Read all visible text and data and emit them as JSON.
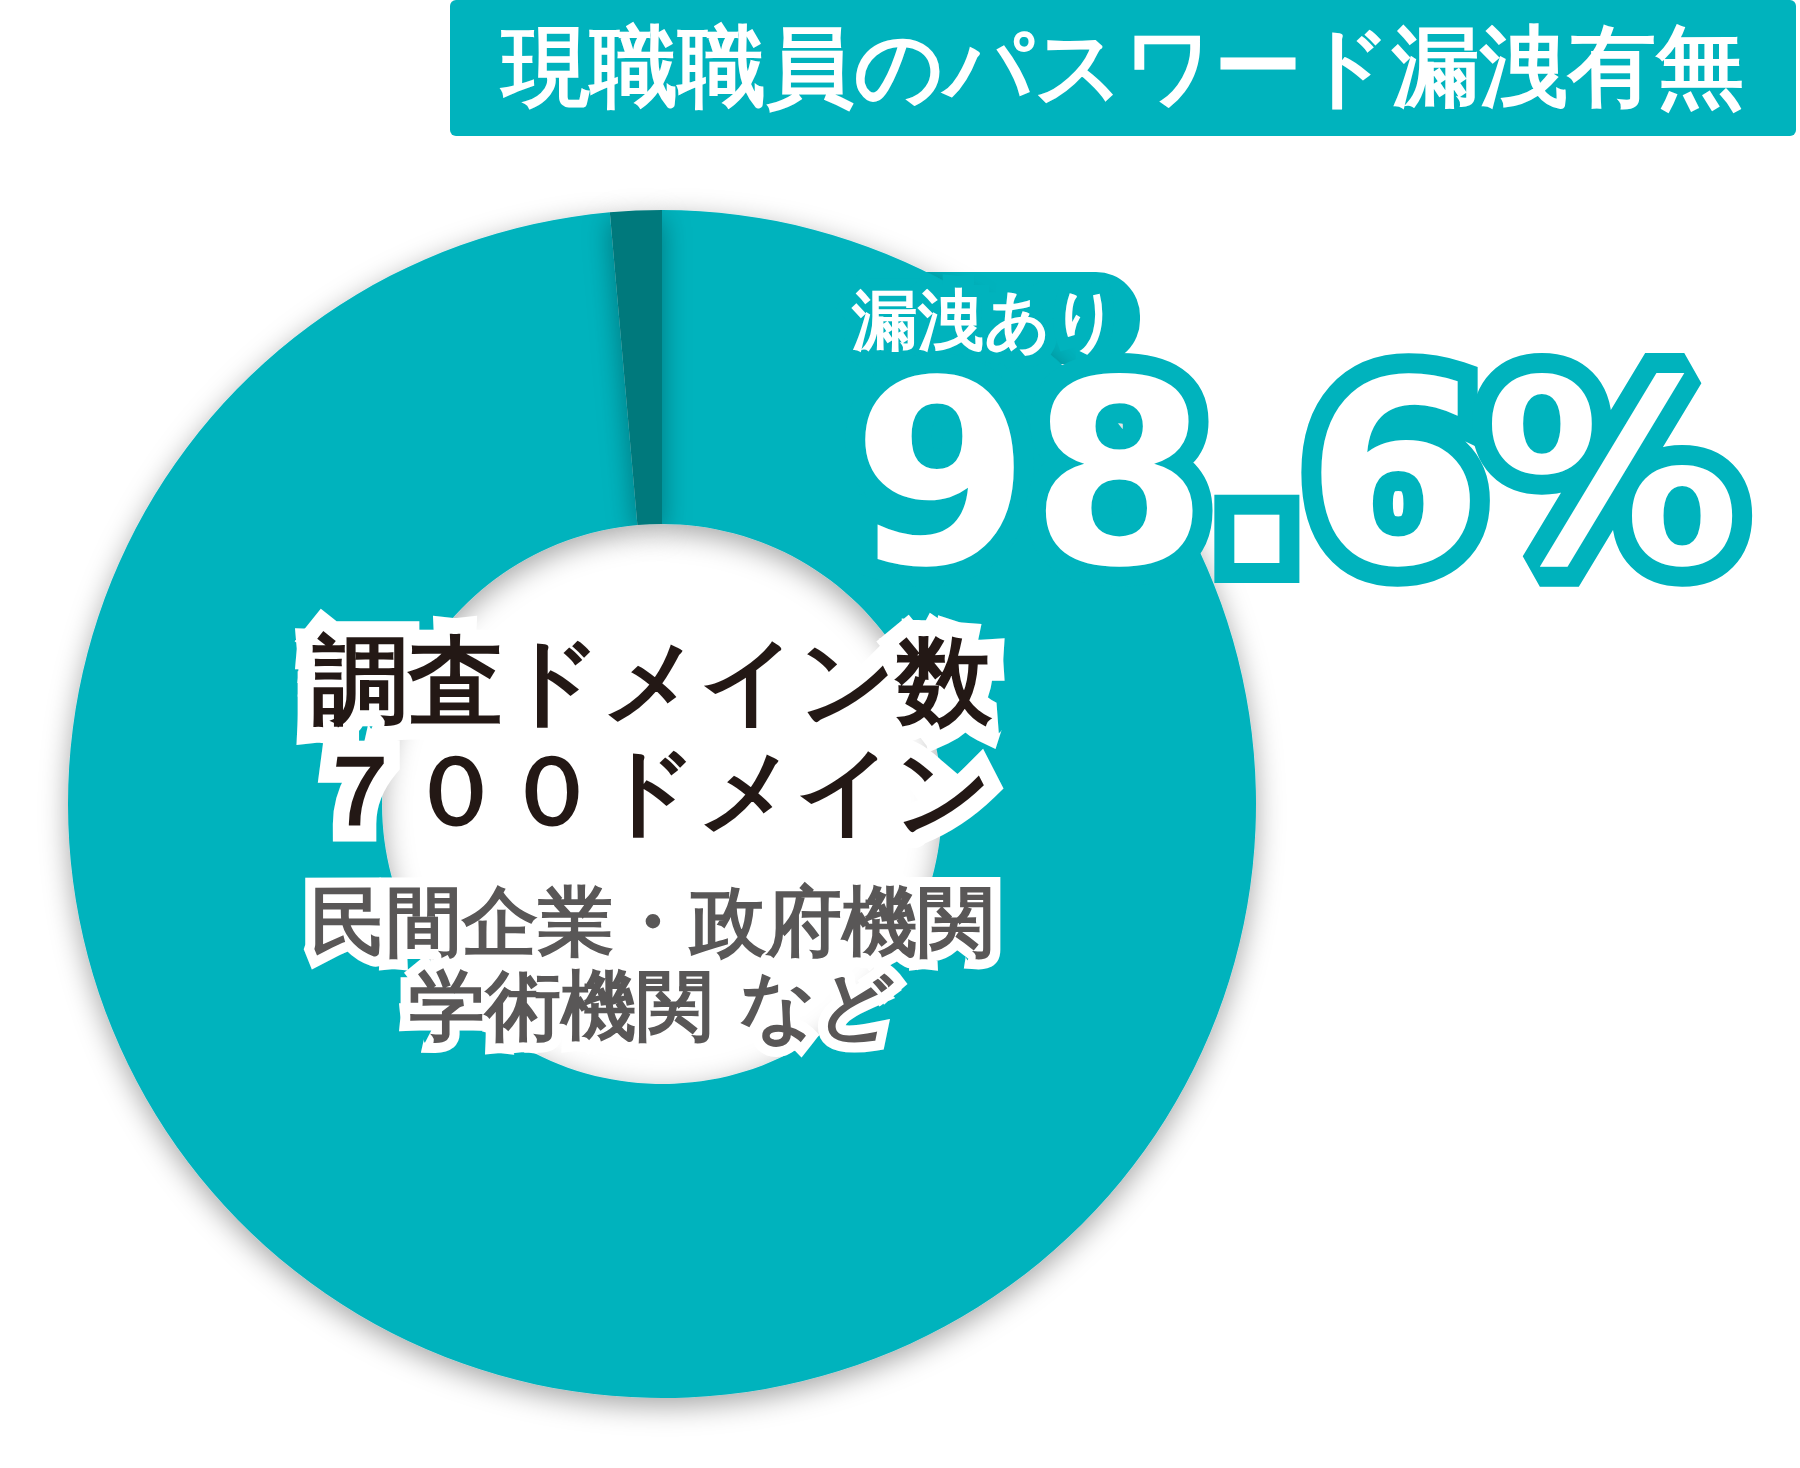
{
  "chart_data": {
    "type": "donut",
    "title": "現職職員のパスワード漏洩有無",
    "categories": [
      "漏洩あり",
      null
    ],
    "values": [
      98.6,
      1.4
    ],
    "colors": [
      "#00b3bd",
      "#00797c"
    ],
    "value_labels": [
      "98.6%",
      null
    ],
    "annotations": [
      "調査ドメイン数",
      "７００ドメイン",
      "民間企業・政府機関",
      "学術機関 など"
    ]
  }
}
